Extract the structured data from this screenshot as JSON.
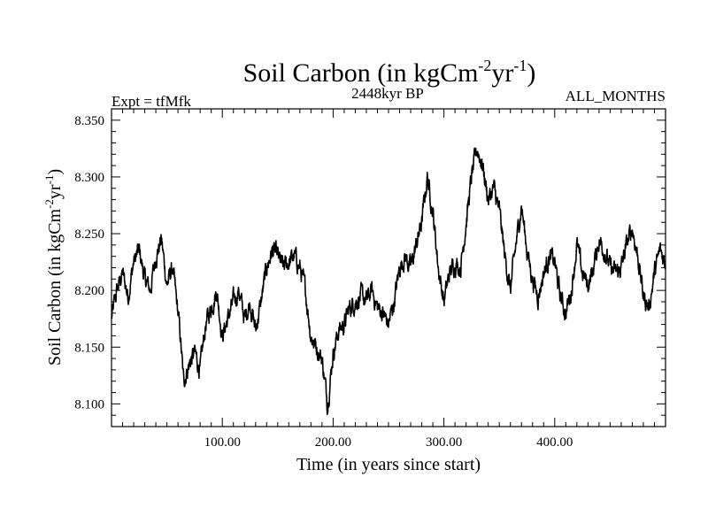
{
  "chart_data": {
    "type": "line",
    "title": "Soil Carbon (in kgCm",
    "title_sup1": "-2",
    "title_mid": "yr",
    "title_sup2": "-1",
    "title_end": ")",
    "subtitle_left": "Expt = tfMfk",
    "subtitle_center": "2448kyr BP",
    "subtitle_right": "ALL_MONTHS",
    "xlabel": "Time (in years since start)",
    "ylabel": "Soil Carbon (in kgCm",
    "ylabel_sup1": "-2",
    "ylabel_mid": "yr",
    "ylabel_sup2": "-1",
    "ylabel_end": ")",
    "xlim": [
      0,
      500
    ],
    "ylim": [
      8.08,
      8.36
    ],
    "xticks": [
      100,
      200,
      300,
      400
    ],
    "xtick_labels": [
      "100.00",
      "200.00",
      "300.00",
      "400.00"
    ],
    "yticks": [
      8.1,
      8.15,
      8.2,
      8.25,
      8.3,
      8.35
    ],
    "ytick_labels": [
      "8.100",
      "8.150",
      "8.200",
      "8.250",
      "8.300",
      "8.350"
    ],
    "line_color": "#000000",
    "series": [
      {
        "name": "Soil Carbon",
        "x": [
          0,
          5,
          10,
          15,
          20,
          25,
          30,
          35,
          40,
          45,
          50,
          55,
          60,
          62,
          65,
          70,
          75,
          80,
          85,
          90,
          95,
          100,
          105,
          110,
          115,
          120,
          125,
          130,
          135,
          140,
          145,
          150,
          155,
          160,
          165,
          170,
          175,
          180,
          185,
          190,
          195,
          200,
          205,
          210,
          215,
          220,
          225,
          230,
          235,
          240,
          245,
          250,
          255,
          260,
          265,
          270,
          275,
          280,
          285,
          290,
          295,
          300,
          305,
          310,
          315,
          320,
          325,
          330,
          335,
          340,
          345,
          350,
          355,
          360,
          365,
          370,
          375,
          380,
          385,
          390,
          395,
          400,
          405,
          410,
          415,
          420,
          425,
          430,
          435,
          440,
          445,
          450,
          455,
          460,
          465,
          470,
          475,
          480,
          485,
          490,
          495,
          500
        ],
        "values": [
          8.175,
          8.2,
          8.215,
          8.195,
          8.225,
          8.235,
          8.21,
          8.2,
          8.23,
          8.245,
          8.205,
          8.22,
          8.18,
          8.16,
          8.12,
          8.135,
          8.145,
          8.13,
          8.17,
          8.185,
          8.2,
          8.16,
          8.175,
          8.19,
          8.2,
          8.175,
          8.19,
          8.165,
          8.19,
          8.22,
          8.235,
          8.23,
          8.22,
          8.225,
          8.23,
          8.22,
          8.2,
          8.16,
          8.15,
          8.14,
          8.1,
          8.145,
          8.165,
          8.17,
          8.185,
          8.19,
          8.195,
          8.19,
          8.2,
          8.185,
          8.18,
          8.17,
          8.19,
          8.22,
          8.23,
          8.22,
          8.24,
          8.26,
          8.3,
          8.27,
          8.22,
          8.19,
          8.215,
          8.225,
          8.22,
          8.26,
          8.3,
          8.325,
          8.31,
          8.28,
          8.29,
          8.27,
          8.23,
          8.2,
          8.24,
          8.275,
          8.235,
          8.21,
          8.195,
          8.215,
          8.23,
          8.225,
          8.195,
          8.18,
          8.2,
          8.24,
          8.215,
          8.205,
          8.22,
          8.245,
          8.235,
          8.22,
          8.215,
          8.22,
          8.24,
          8.255,
          8.23,
          8.195,
          8.185,
          8.215,
          8.235,
          8.225
        ]
      }
    ]
  }
}
